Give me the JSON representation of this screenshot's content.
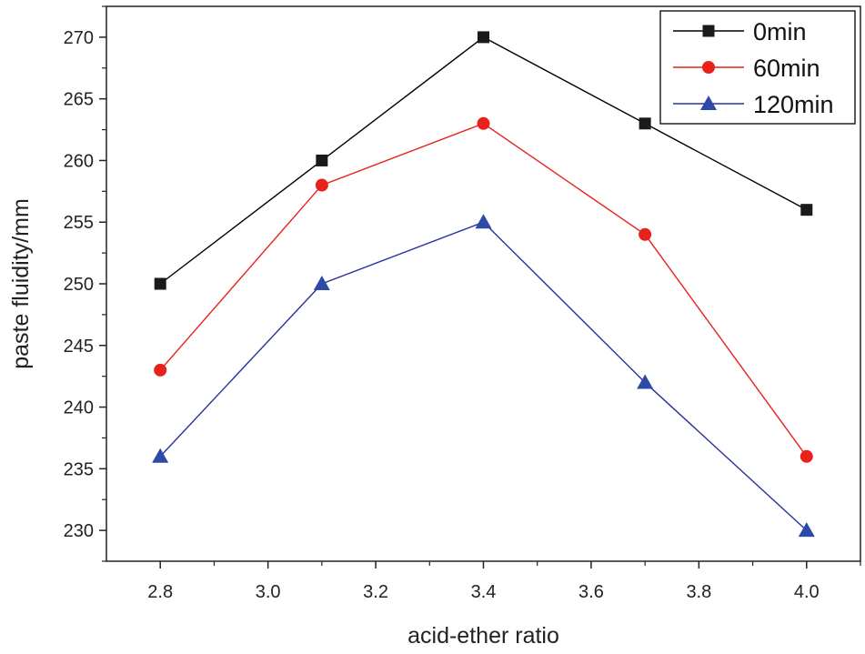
{
  "chart_data": {
    "type": "line",
    "title": "",
    "xlabel": "acid-ether ratio",
    "ylabel": "paste fluidity/mm",
    "x": [
      2.8,
      3.1,
      3.4,
      3.7,
      4.0
    ],
    "xlim": [
      2.7,
      4.1
    ],
    "ylim": [
      227.5,
      272.5
    ],
    "xticks": [
      2.8,
      3.0,
      3.2,
      3.4,
      3.6,
      3.8,
      4.0
    ],
    "xtick_labels": [
      "2.8",
      "3.0",
      "3.2",
      "3.4",
      "3.6",
      "3.8",
      "4.0"
    ],
    "yticks": [
      230,
      235,
      240,
      245,
      250,
      255,
      260,
      265,
      270
    ],
    "ytick_labels": [
      "230",
      "235",
      "240",
      "245",
      "250",
      "255",
      "260",
      "265",
      "270"
    ],
    "grid": false,
    "legend_position": "top-right",
    "series": [
      {
        "name": "0min",
        "values": [
          250,
          260,
          270,
          263,
          256
        ],
        "color": "#000000",
        "marker": "square",
        "marker_color": "#1a1a1a"
      },
      {
        "name": "60min",
        "values": [
          243,
          258,
          263,
          254,
          236
        ],
        "color": "#e8211c",
        "marker": "circle",
        "marker_color": "#e8211c"
      },
      {
        "name": "120min",
        "values": [
          236,
          250,
          255,
          242,
          230
        ],
        "color": "#27339a",
        "marker": "triangle",
        "marker_color": "#2e4aa8"
      }
    ]
  }
}
